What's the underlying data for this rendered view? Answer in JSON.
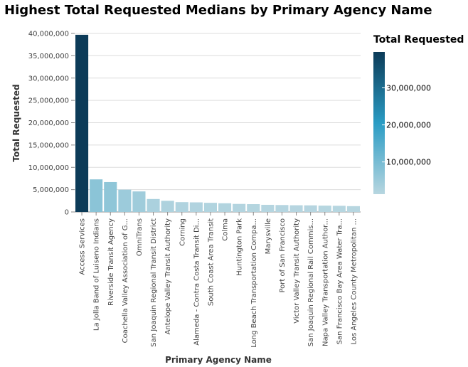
{
  "chart_data": {
    "type": "bar",
    "title": "Highest Total Requested Medians by Primary Agency Name",
    "xlabel": "Primary Agency Name",
    "ylabel": "Total Requested",
    "ylim": [
      0,
      40000000
    ],
    "yticks": [
      "0",
      "5,000,000",
      "10,000,000",
      "15,000,000",
      "20,000,000",
      "25,000,000",
      "30,000,000",
      "35,000,000",
      "40,000,000"
    ],
    "categories": [
      "Access Services",
      "La Jolla Band of Luiseno Indians",
      "Riverside Transit Agency",
      "Coachella Valley Association of G...",
      "OmniTrans",
      "San Joaquin Regional Transit District",
      "Antelope Valley Transit Authority",
      "Corning",
      "Alameda - Contra Costa Transit Di...",
      "South Coast Area Transit",
      "Colma",
      "Huntington Park",
      "Long Beach Transportation Compa...",
      "Marysville",
      "Port of San Francisco",
      "Victor Valley Transit Authority",
      "San Joaquin Regional Rail Commis...",
      "Napa Valley Transportation Author...",
      "San Francisco Bay Area Water Tra...",
      "Los Angeles County Metropolitan ..."
    ],
    "values": [
      39700000,
      7300000,
      6700000,
      5000000,
      4600000,
      2900000,
      2500000,
      2200000,
      2150000,
      2050000,
      1950000,
      1800000,
      1750000,
      1600000,
      1550000,
      1500000,
      1480000,
      1420000,
      1380000,
      1300000
    ],
    "grid": true,
    "legend": {
      "title": "Total Requested",
      "placement": "right",
      "labels": [
        "30,000,000",
        "20,000,000",
        "10,000,000"
      ],
      "label_values": [
        30000000,
        20000000,
        10000000
      ],
      "domain": [
        1300000,
        39700000
      ]
    },
    "colors": {
      "low": "#b7d6e0",
      "mid": "#2a9cc4",
      "high": "#0c3b58"
    }
  }
}
